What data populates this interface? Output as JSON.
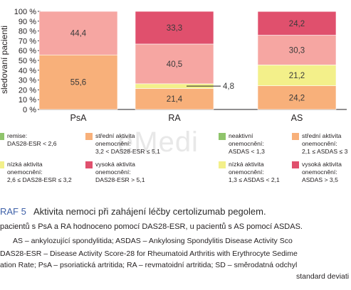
{
  "chart_data": {
    "type": "bar",
    "stacked": true,
    "categories": [
      "PsA",
      "RA",
      "AS"
    ],
    "ylabel": "sledovaní pacienti",
    "ylim": [
      0,
      100
    ],
    "yticks": [
      "0 %",
      "10 %",
      "20 %",
      "30 %",
      "40 %",
      "50 %",
      "60 %",
      "70 %",
      "80 %",
      "90 %",
      "100 %"
    ],
    "series": [
      {
        "key": "low_das",
        "values": [
          55.6,
          21.4,
          null
        ],
        "color": "#f8b07a",
        "labels": [
          "55,6",
          "21,4",
          null
        ]
      },
      {
        "key": "mid_das_ra",
        "values": [
          null,
          4.8,
          null
        ],
        "color": "#f3f08a",
        "labels": [
          null,
          "4,8",
          null
        ]
      },
      {
        "key": "mid_high",
        "values": [
          44.4,
          40.5,
          null
        ],
        "color": "#f6a6a2",
        "labels": [
          "44,4",
          "40,5",
          null
        ]
      },
      {
        "key": "high_ra",
        "values": [
          null,
          33.3,
          null
        ],
        "color": "#e0506d",
        "labels": [
          null,
          "33,3",
          null
        ]
      },
      {
        "key": "as_mid",
        "values": [
          null,
          null,
          24.2
        ],
        "color": "#f8b07a",
        "labels": [
          null,
          null,
          "24,2"
        ]
      },
      {
        "key": "as_low",
        "values": [
          null,
          null,
          21.2
        ],
        "color": "#f3f08a",
        "labels": [
          null,
          null,
          "21,2"
        ]
      },
      {
        "key": "as_high1",
        "values": [
          null,
          null,
          30.3
        ],
        "color": "#f6a6a2",
        "labels": [
          null,
          null,
          "30,3"
        ]
      },
      {
        "key": "as_high2",
        "values": [
          null,
          null,
          24.2
        ],
        "color": "#e0506d",
        "labels": [
          null,
          null,
          "24,2"
        ]
      }
    ],
    "legend": {
      "columns": [
        [
          {
            "text": "remise:\nDAS28-ESR < 2,6",
            "color": "#8fc46b"
          },
          {
            "text": "nízká aktivita\nonemocnění:\n2,6 ≤ DAS28-ESR ≤ 3,2",
            "color": "#f3f08a"
          }
        ],
        [
          {
            "text": "střední aktivita\nonemocnění:\n3,2 < DAS28-ESR ≤ 5,1",
            "color": "#f8b07a"
          },
          {
            "text": "vysoká aktivita\nonemocnění:\nDAS28-ESR > 5,1",
            "color": "#e0506d"
          }
        ],
        [
          {
            "text": "neaktivní\nonemocnění:\nASDAS < 1,3",
            "color": "#8fc46b"
          },
          {
            "text": "nízká aktivita\nonemocnění:\n1,3 ≤ ASDAS < 2,1",
            "color": "#f3f08a"
          }
        ],
        [
          {
            "text": "střední aktivita\nonemocnění:\n2,1 ≤ ASDAS ≤ 3",
            "color": "#f8b07a"
          },
          {
            "text": "vysoká aktivita\nonemocnění:\nASDAS > 3,5",
            "color": "#e0506d"
          }
        ]
      ]
    }
  },
  "caption": {
    "label": "RAF 5",
    "title": "Aktivita nemoci při zahájení léčby certolizumab pegolem.",
    "subtitle": "pacientů s PsA a RA hodnoceno pomocí DAS28-ESR, u pacientů s AS pomocí ASDAS.",
    "abbreviations": [
      "AS – ankylozující spondylitida; ASDAS – Ankylosing Spondylitis Disease Activity Sco",
      "DAS28-ESR – Disease Activity Score-28 for Rheumatoid Arthritis with Erythrocyte Sedime",
      "ation Rate; PsA – psoriatická artritida; RA – revmatoidní artritida; SD – směrodatná odchyl",
      "standard deviati"
    ]
  },
  "watermark": "eMedi"
}
